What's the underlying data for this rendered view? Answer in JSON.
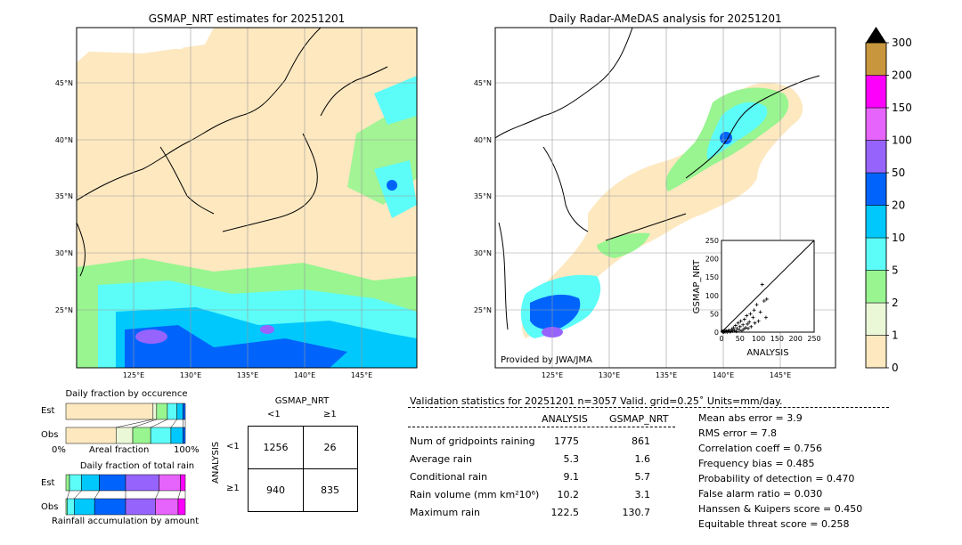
{
  "map_left": {
    "title": "GSMAP_NRT estimates for 20251201",
    "lat_labels": [
      "45°N",
      "40°N",
      "35°N",
      "30°N",
      "25°N"
    ],
    "lon_labels": [
      "125°E",
      "130°E",
      "135°E",
      "140°E",
      "145°E"
    ]
  },
  "map_right": {
    "title": "Daily Radar-AMeDAS analysis for 20251201",
    "lat_labels": [
      "45°N",
      "40°N",
      "35°N",
      "30°N",
      "25°N"
    ],
    "lon_labels": [
      "125°E",
      "130°E",
      "135°E",
      "140°E",
      "145°E"
    ],
    "credit": "Provided by JWA/JMA"
  },
  "colorbar": {
    "labels": [
      "0",
      "1",
      "2",
      "5",
      "10",
      "20",
      "50",
      "100",
      "150",
      "200",
      "300"
    ],
    "colors": [
      "#fde8c0",
      "#eaf8d8",
      "#98f590",
      "#5cfcf8",
      "#00c8fc",
      "#0064fc",
      "#9664fc",
      "#e664fc",
      "#fc00fc",
      "#c8963c"
    ],
    "extend_color": "#000000"
  },
  "scatter": {
    "xlabel": "ANALYSIS",
    "ylabel": "GSMAP_NRT",
    "ticks": [
      "0",
      "50",
      "100",
      "150",
      "200",
      "250"
    ]
  },
  "fraction_occurrence": {
    "title": "Daily fraction by occurence",
    "est_label": "Est",
    "obs_label": "Obs",
    "axis_left": "0%",
    "axis_mid": "Areal fraction",
    "axis_right": "100%"
  },
  "fraction_rain": {
    "title": "Daily fraction of total rain",
    "est_label": "Est",
    "obs_label": "Obs",
    "axis_mid": "Rainfall accumulation by amount"
  },
  "contingency": {
    "col_header": "GSMAP_NRT",
    "col_lt": "<1",
    "col_ge": "≥1",
    "row_header": "ANALYSIS",
    "row_lt": "<1",
    "row_ge": "≥1",
    "a": "1256",
    "b": "26",
    "c": "940",
    "d": "835"
  },
  "validation": {
    "header": "Validation statistics for 20251201  n=3057 Valid. grid=0.25˚ Units=mm/day.",
    "col_analysis": "ANALYSIS",
    "col_gsmap": "GSMAP_NRT",
    "rows": [
      {
        "label": "Num of gridpoints raining",
        "analysis": "1775",
        "gsmap": "861"
      },
      {
        "label": "Average rain",
        "analysis": "5.3",
        "gsmap": "1.6"
      },
      {
        "label": "Conditional rain",
        "analysis": "9.1",
        "gsmap": "5.7"
      },
      {
        "label": "Rain volume (mm km²10⁶)",
        "analysis": "10.2",
        "gsmap": "3.1"
      },
      {
        "label": "Maximum rain",
        "analysis": "122.5",
        "gsmap": "130.7"
      }
    ],
    "scores": [
      "Mean abs error =    3.9",
      "RMS error =    7.8",
      "Correlation coeff =  0.756",
      "Frequency bias =  0.485",
      "Probability of detection =  0.470",
      "False alarm ratio =  0.030",
      "Hanssen & Kuipers score =  0.450",
      "Equitable threat score =  0.258"
    ]
  },
  "chart_data": [
    {
      "type": "scatter",
      "xlabel": "ANALYSIS",
      "ylabel": "GSMAP_NRT",
      "xlim": [
        0,
        250
      ],
      "ylim": [
        0,
        250
      ],
      "points": [
        [
          2,
          2
        ],
        [
          4,
          1
        ],
        [
          5,
          3
        ],
        [
          6,
          0
        ],
        [
          8,
          2
        ],
        [
          10,
          1
        ],
        [
          12,
          4
        ],
        [
          14,
          2
        ],
        [
          15,
          0
        ],
        [
          18,
          3
        ],
        [
          20,
          5
        ],
        [
          22,
          1
        ],
        [
          25,
          2
        ],
        [
          28,
          8
        ],
        [
          30,
          3
        ],
        [
          32,
          12
        ],
        [
          35,
          5
        ],
        [
          38,
          18
        ],
        [
          40,
          2
        ],
        [
          42,
          10
        ],
        [
          45,
          25
        ],
        [
          48,
          6
        ],
        [
          50,
          15
        ],
        [
          52,
          30
        ],
        [
          55,
          4
        ],
        [
          58,
          20
        ],
        [
          60,
          8
        ],
        [
          62,
          35
        ],
        [
          65,
          12
        ],
        [
          68,
          45
        ],
        [
          70,
          22
        ],
        [
          72,
          10
        ],
        [
          75,
          28
        ],
        [
          78,
          50
        ],
        [
          80,
          15
        ],
        [
          85,
          40
        ],
        [
          88,
          60
        ],
        [
          90,
          25
        ],
        [
          95,
          75
        ],
        [
          100,
          30
        ],
        [
          105,
          55
        ],
        [
          110,
          130
        ],
        [
          115,
          85
        ],
        [
          120,
          40
        ],
        [
          122,
          90
        ]
      ]
    },
    {
      "type": "bar",
      "title": "Daily fraction by occurence",
      "series": [
        {
          "name": "Est",
          "values": [
            0.73,
            0.03,
            0.09,
            0.08,
            0.05,
            0.02
          ]
        },
        {
          "name": "Obs",
          "values": [
            0.42,
            0.14,
            0.15,
            0.17,
            0.1,
            0.02
          ]
        }
      ]
    },
    {
      "type": "bar",
      "title": "Daily fraction of total rain",
      "series": [
        {
          "name": "Est",
          "values": [
            0.03,
            0.1,
            0.15,
            0.22,
            0.28,
            0.18,
            0.04
          ]
        },
        {
          "name": "Obs",
          "values": [
            0.01,
            0.06,
            0.17,
            0.26,
            0.25,
            0.19,
            0.06
          ]
        }
      ]
    }
  ]
}
